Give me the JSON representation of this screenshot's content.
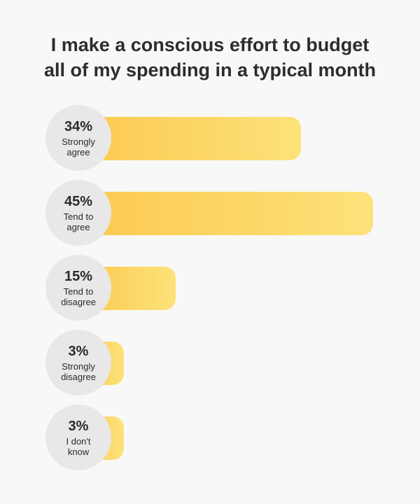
{
  "chart_data": {
    "type": "bar",
    "title_lines": [
      "I make a conscious effort to budget",
      "all of my spending in a typical month"
    ],
    "categories": [
      "Strongly\nagree",
      "Tend to\nagree",
      "Tend to\ndisagree",
      "Strongly\ndisagree",
      "I don't\nknow"
    ],
    "values": [
      34,
      45,
      15,
      3,
      3
    ],
    "value_labels": [
      "34%",
      "45%",
      "15%",
      "3%",
      "3%"
    ],
    "unit": "%",
    "xlim": [
      0,
      45
    ],
    "bar_color_start": "#fbc84f",
    "bar_color_end": "#fde27a",
    "circle_color": "#e8e8e8"
  }
}
